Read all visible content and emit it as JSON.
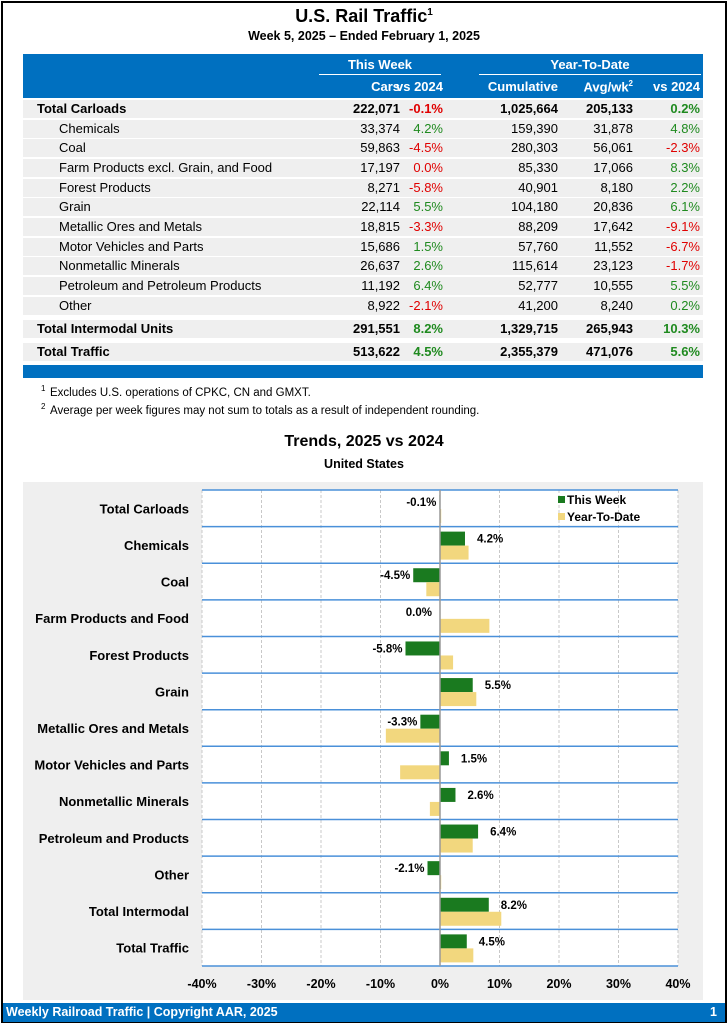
{
  "header": {
    "title": "U.S. Rail Traffic",
    "title_sup": "1",
    "subtitle": "Week 5, 2025 – Ended February 1, 2025"
  },
  "table": {
    "group_this_week": "This Week",
    "group_ytd": "Year-To-Date",
    "columns": [
      "Cars",
      "vs 2024",
      "Cumulative",
      "Avg/wk",
      "vs 2024"
    ],
    "avg_sup": "2",
    "rows": [
      {
        "label": "Total Carloads",
        "cars": "222,071",
        "vs": "-0.1%",
        "cum": "1,025,664",
        "avg": "205,133",
        "ytd_vs": "0.2%",
        "bold": true
      },
      {
        "label": "Chemicals",
        "cars": "33,374",
        "vs": "4.2%",
        "cum": "159,390",
        "avg": "31,878",
        "ytd_vs": "4.8%"
      },
      {
        "label": "Coal",
        "cars": "59,863",
        "vs": "-4.5%",
        "cum": "280,303",
        "avg": "56,061",
        "ytd_vs": "-2.3%"
      },
      {
        "label": "Farm Products excl. Grain, and Food",
        "cars": "17,197",
        "vs": "0.0%",
        "cum": "85,330",
        "avg": "17,066",
        "ytd_vs": "8.3%"
      },
      {
        "label": "Forest Products",
        "cars": "8,271",
        "vs": "-5.8%",
        "cum": "40,901",
        "avg": "8,180",
        "ytd_vs": "2.2%"
      },
      {
        "label": "Grain",
        "cars": "22,114",
        "vs": "5.5%",
        "cum": "104,180",
        "avg": "20,836",
        "ytd_vs": "6.1%"
      },
      {
        "label": "Metallic Ores and Metals",
        "cars": "18,815",
        "vs": "-3.3%",
        "cum": "88,209",
        "avg": "17,642",
        "ytd_vs": "-9.1%"
      },
      {
        "label": "Motor Vehicles and Parts",
        "cars": "15,686",
        "vs": "1.5%",
        "cum": "57,760",
        "avg": "11,552",
        "ytd_vs": "-6.7%"
      },
      {
        "label": "Nonmetallic Minerals",
        "cars": "26,637",
        "vs": "2.6%",
        "cum": "115,614",
        "avg": "23,123",
        "ytd_vs": "-1.7%"
      },
      {
        "label": "Petroleum and Petroleum Products",
        "cars": "11,192",
        "vs": "6.4%",
        "cum": "52,777",
        "avg": "10,555",
        "ytd_vs": "5.5%"
      },
      {
        "label": "Other",
        "cars": "8,922",
        "vs": "-2.1%",
        "cum": "41,200",
        "avg": "8,240",
        "ytd_vs": "0.2%"
      },
      {
        "label": "Total Intermodal Units",
        "cars": "291,551",
        "vs": "8.2%",
        "cum": "1,329,715",
        "avg": "265,943",
        "ytd_vs": "10.3%",
        "bold": true
      },
      {
        "label": "Total Traffic",
        "cars": "513,622",
        "vs": "4.5%",
        "cum": "2,355,379",
        "avg": "471,076",
        "ytd_vs": "5.6%",
        "bold": true
      }
    ]
  },
  "notes": [
    {
      "sup": "1",
      "text": "Excludes U.S. operations of CPKC, CN and GMXT."
    },
    {
      "sup": "2",
      "text": "Average per week figures may not sum to totals as a result of independent rounding."
    }
  ],
  "colors": {
    "header_blue": "#0070c0",
    "this_week": "#1a7a1f",
    "ytd": "#f2d77e",
    "neg": "#e00000",
    "pos": "#1f8a1f"
  },
  "chart_data": {
    "type": "bar",
    "orientation": "horizontal",
    "title": "Trends, 2025 vs 2024",
    "subtitle": "United States",
    "categories": [
      "Total Carloads",
      "Chemicals",
      "Coal",
      "Farm Products and Food",
      "Forest Products",
      "Grain",
      "Metallic Ores and Metals",
      "Motor Vehicles and Parts",
      "Nonmetallic Minerals",
      "Petroleum and Products",
      "Other",
      "Total Intermodal",
      "Total Traffic"
    ],
    "series": [
      {
        "name": "This Week",
        "values": [
          -0.1,
          4.2,
          -4.5,
          0.0,
          -5.8,
          5.5,
          -3.3,
          1.5,
          2.6,
          6.4,
          -2.1,
          8.2,
          4.5
        ]
      },
      {
        "name": "Year-To-Date",
        "values": [
          0.2,
          4.8,
          -2.3,
          8.3,
          2.2,
          6.1,
          -9.1,
          -6.7,
          -1.7,
          5.5,
          0.2,
          10.3,
          5.6
        ]
      }
    ],
    "data_labels": [
      "-0.1%",
      "4.2%",
      "-4.5%",
      "0.0%",
      "-5.8%",
      "5.5%",
      "-3.3%",
      "1.5%",
      "2.6%",
      "6.4%",
      "-2.1%",
      "8.2%",
      "4.5%"
    ],
    "xlim": [
      -40,
      40
    ],
    "xticks": [
      "-40%",
      "-30%",
      "-20%",
      "-10%",
      "0%",
      "10%",
      "20%",
      "30%",
      "40%"
    ],
    "grid": true,
    "legend": "top-right"
  },
  "footer": {
    "left": "Weekly Railroad Traffic | Copyright AAR, 2025",
    "page": "1"
  }
}
